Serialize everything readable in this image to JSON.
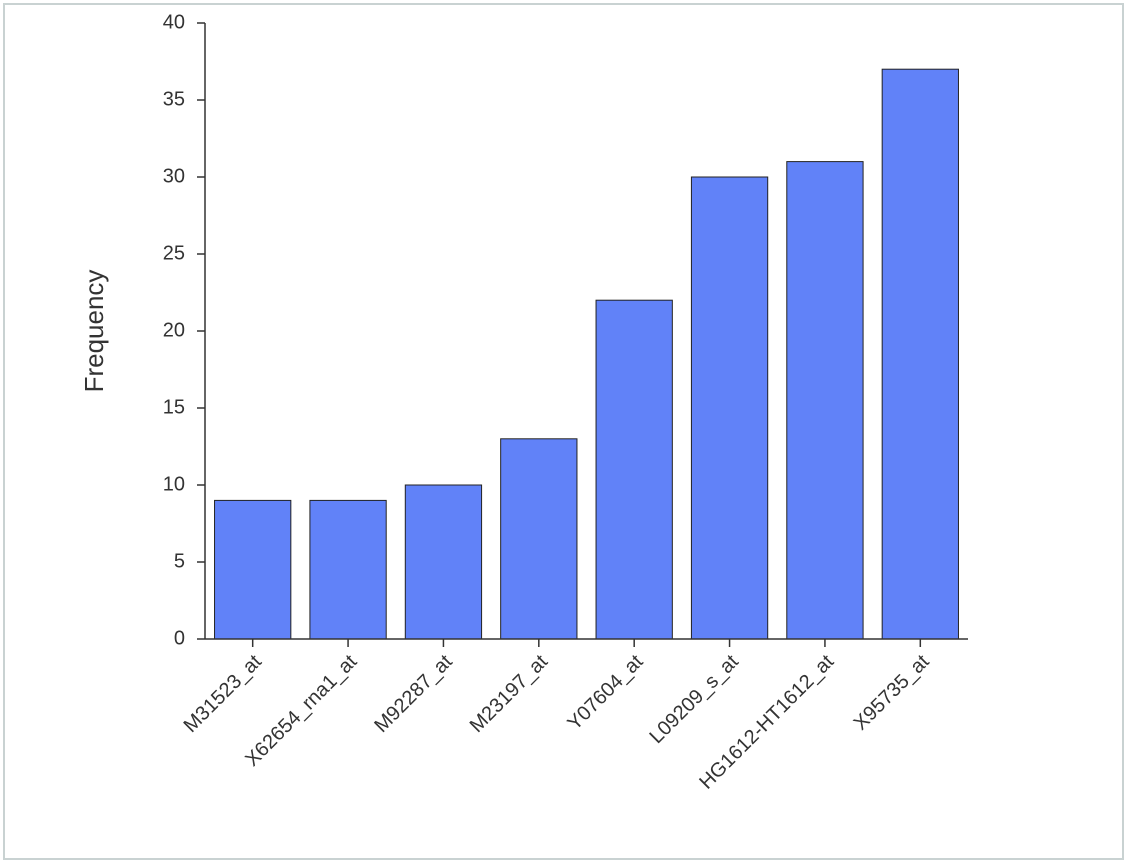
{
  "chart_data": {
    "type": "bar",
    "y_label": "Frequency",
    "categories": [
      "M31523_at",
      "X62654_rna1_at",
      "M92287_at",
      "M23197_at",
      "Y07604_at",
      "L09209_s_at",
      "HG1612-HT1612_at",
      "X95735_at"
    ],
    "values": [
      9,
      9,
      10,
      13,
      22,
      30,
      31,
      37
    ],
    "color": "#6182f8",
    "ylim": [
      0,
      40
    ],
    "yticks": [
      0,
      5,
      10,
      15,
      20,
      25,
      30,
      35,
      40
    ],
    "grid": false
  }
}
